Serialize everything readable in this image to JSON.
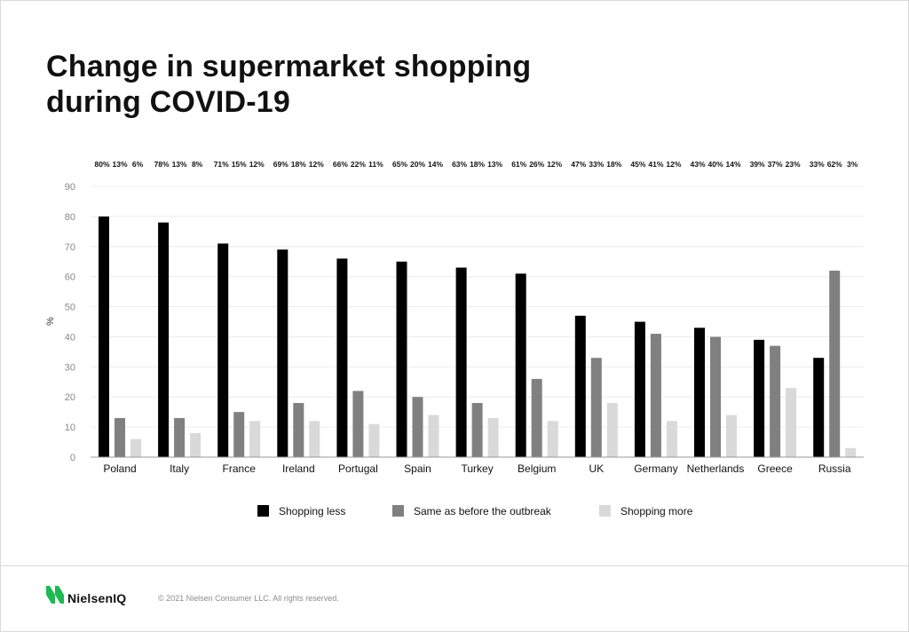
{
  "chart_data": {
    "type": "bar",
    "title": [
      "Change in supermarket shopping",
      "during COVID-19"
    ],
    "ylabel": "%",
    "ylim": [
      0,
      90
    ],
    "yticks": [
      0,
      10,
      20,
      30,
      40,
      50,
      60,
      70,
      80,
      90
    ],
    "grid": true,
    "legend_position": "bottom",
    "categories": [
      "Poland",
      "Italy",
      "France",
      "Ireland",
      "Portugal",
      "Spain",
      "Turkey",
      "Belgium",
      "UK",
      "Germany",
      "Netherlands",
      "Greece",
      "Russia"
    ],
    "series": [
      {
        "name": "Shopping less",
        "color": "#000000",
        "values": [
          80,
          78,
          71,
          69,
          66,
          65,
          63,
          61,
          47,
          45,
          43,
          39,
          33
        ]
      },
      {
        "name": "Same as before the outbreak",
        "color": "#808080",
        "values": [
          13,
          13,
          15,
          18,
          22,
          20,
          18,
          26,
          33,
          41,
          40,
          37,
          62
        ]
      },
      {
        "name": "Shopping more",
        "color": "#d9d9d9",
        "values": [
          6,
          8,
          12,
          12,
          11,
          14,
          13,
          12,
          18,
          12,
          14,
          23,
          3
        ]
      }
    ],
    "top_labels": [
      [
        "80%",
        "13%",
        "6%"
      ],
      [
        "78%",
        "13%",
        "8%"
      ],
      [
        "71%",
        "15%",
        "12%"
      ],
      [
        "69%",
        "18%",
        "12%"
      ],
      [
        "66%",
        "22%",
        "11%"
      ],
      [
        "65%",
        "20%",
        "14%"
      ],
      [
        "63%",
        "18%",
        "13%"
      ],
      [
        "61%",
        "26%",
        "12%"
      ],
      [
        "47%",
        "33%",
        "18%"
      ],
      [
        "45%",
        "41%",
        "12%"
      ],
      [
        "43%",
        "40%",
        "14%"
      ],
      [
        "39%",
        "37%",
        "23%"
      ],
      [
        "33%",
        "62%",
        "3%"
      ]
    ]
  },
  "footer": {
    "brand": "NielsenIQ",
    "copyright": "© 2021 Nielsen Consumer LLC. All rights reserved.",
    "brand_color": "#1db954"
  }
}
